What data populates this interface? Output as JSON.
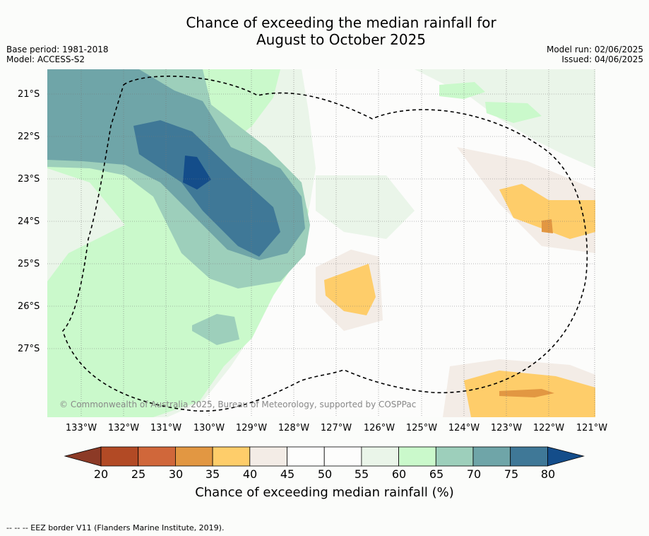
{
  "title_line1": "Chance of exceeding the median rainfall for",
  "title_line2": "August to October 2025",
  "base_period": "Base period: 1981-2018",
  "model": "Model: ACCESS-S2",
  "model_run": "Model run: 02/06/2025",
  "issued": "Issued: 04/06/2025",
  "copyright": "© Commonwealth of Australia 2025, Bureau of Meteorology, supported by COSPPac",
  "lat_labels": [
    "21°S",
    "22°S",
    "23°S",
    "24°S",
    "25°S",
    "26°S",
    "27°S"
  ],
  "lon_labels": [
    "133°W",
    "132°W",
    "131°W",
    "130°W",
    "129°W",
    "128°W",
    "127°W",
    "126°W",
    "125°W",
    "124°W",
    "123°W",
    "122°W",
    "121°W"
  ],
  "colorbar": {
    "ticks": [
      "20",
      "25",
      "30",
      "35",
      "40",
      "45",
      "50",
      "55",
      "60",
      "65",
      "70",
      "75",
      "80"
    ],
    "colors": [
      "#8c3a26",
      "#b24a25",
      "#d0673a",
      "#e29742",
      "#fecd6a",
      "#f3ece6",
      "#fdfdfc",
      "#fdfdfc",
      "#eaf5e9",
      "#caf9cb",
      "#9dcfbb",
      "#6fa5a8",
      "#3f7897",
      "#144d8a"
    ],
    "label": "Chance of exceeding median rainfall (%)"
  },
  "footer": "--  --  -- EEZ border V11 (Flanders Marine Institute, 2019)."
}
